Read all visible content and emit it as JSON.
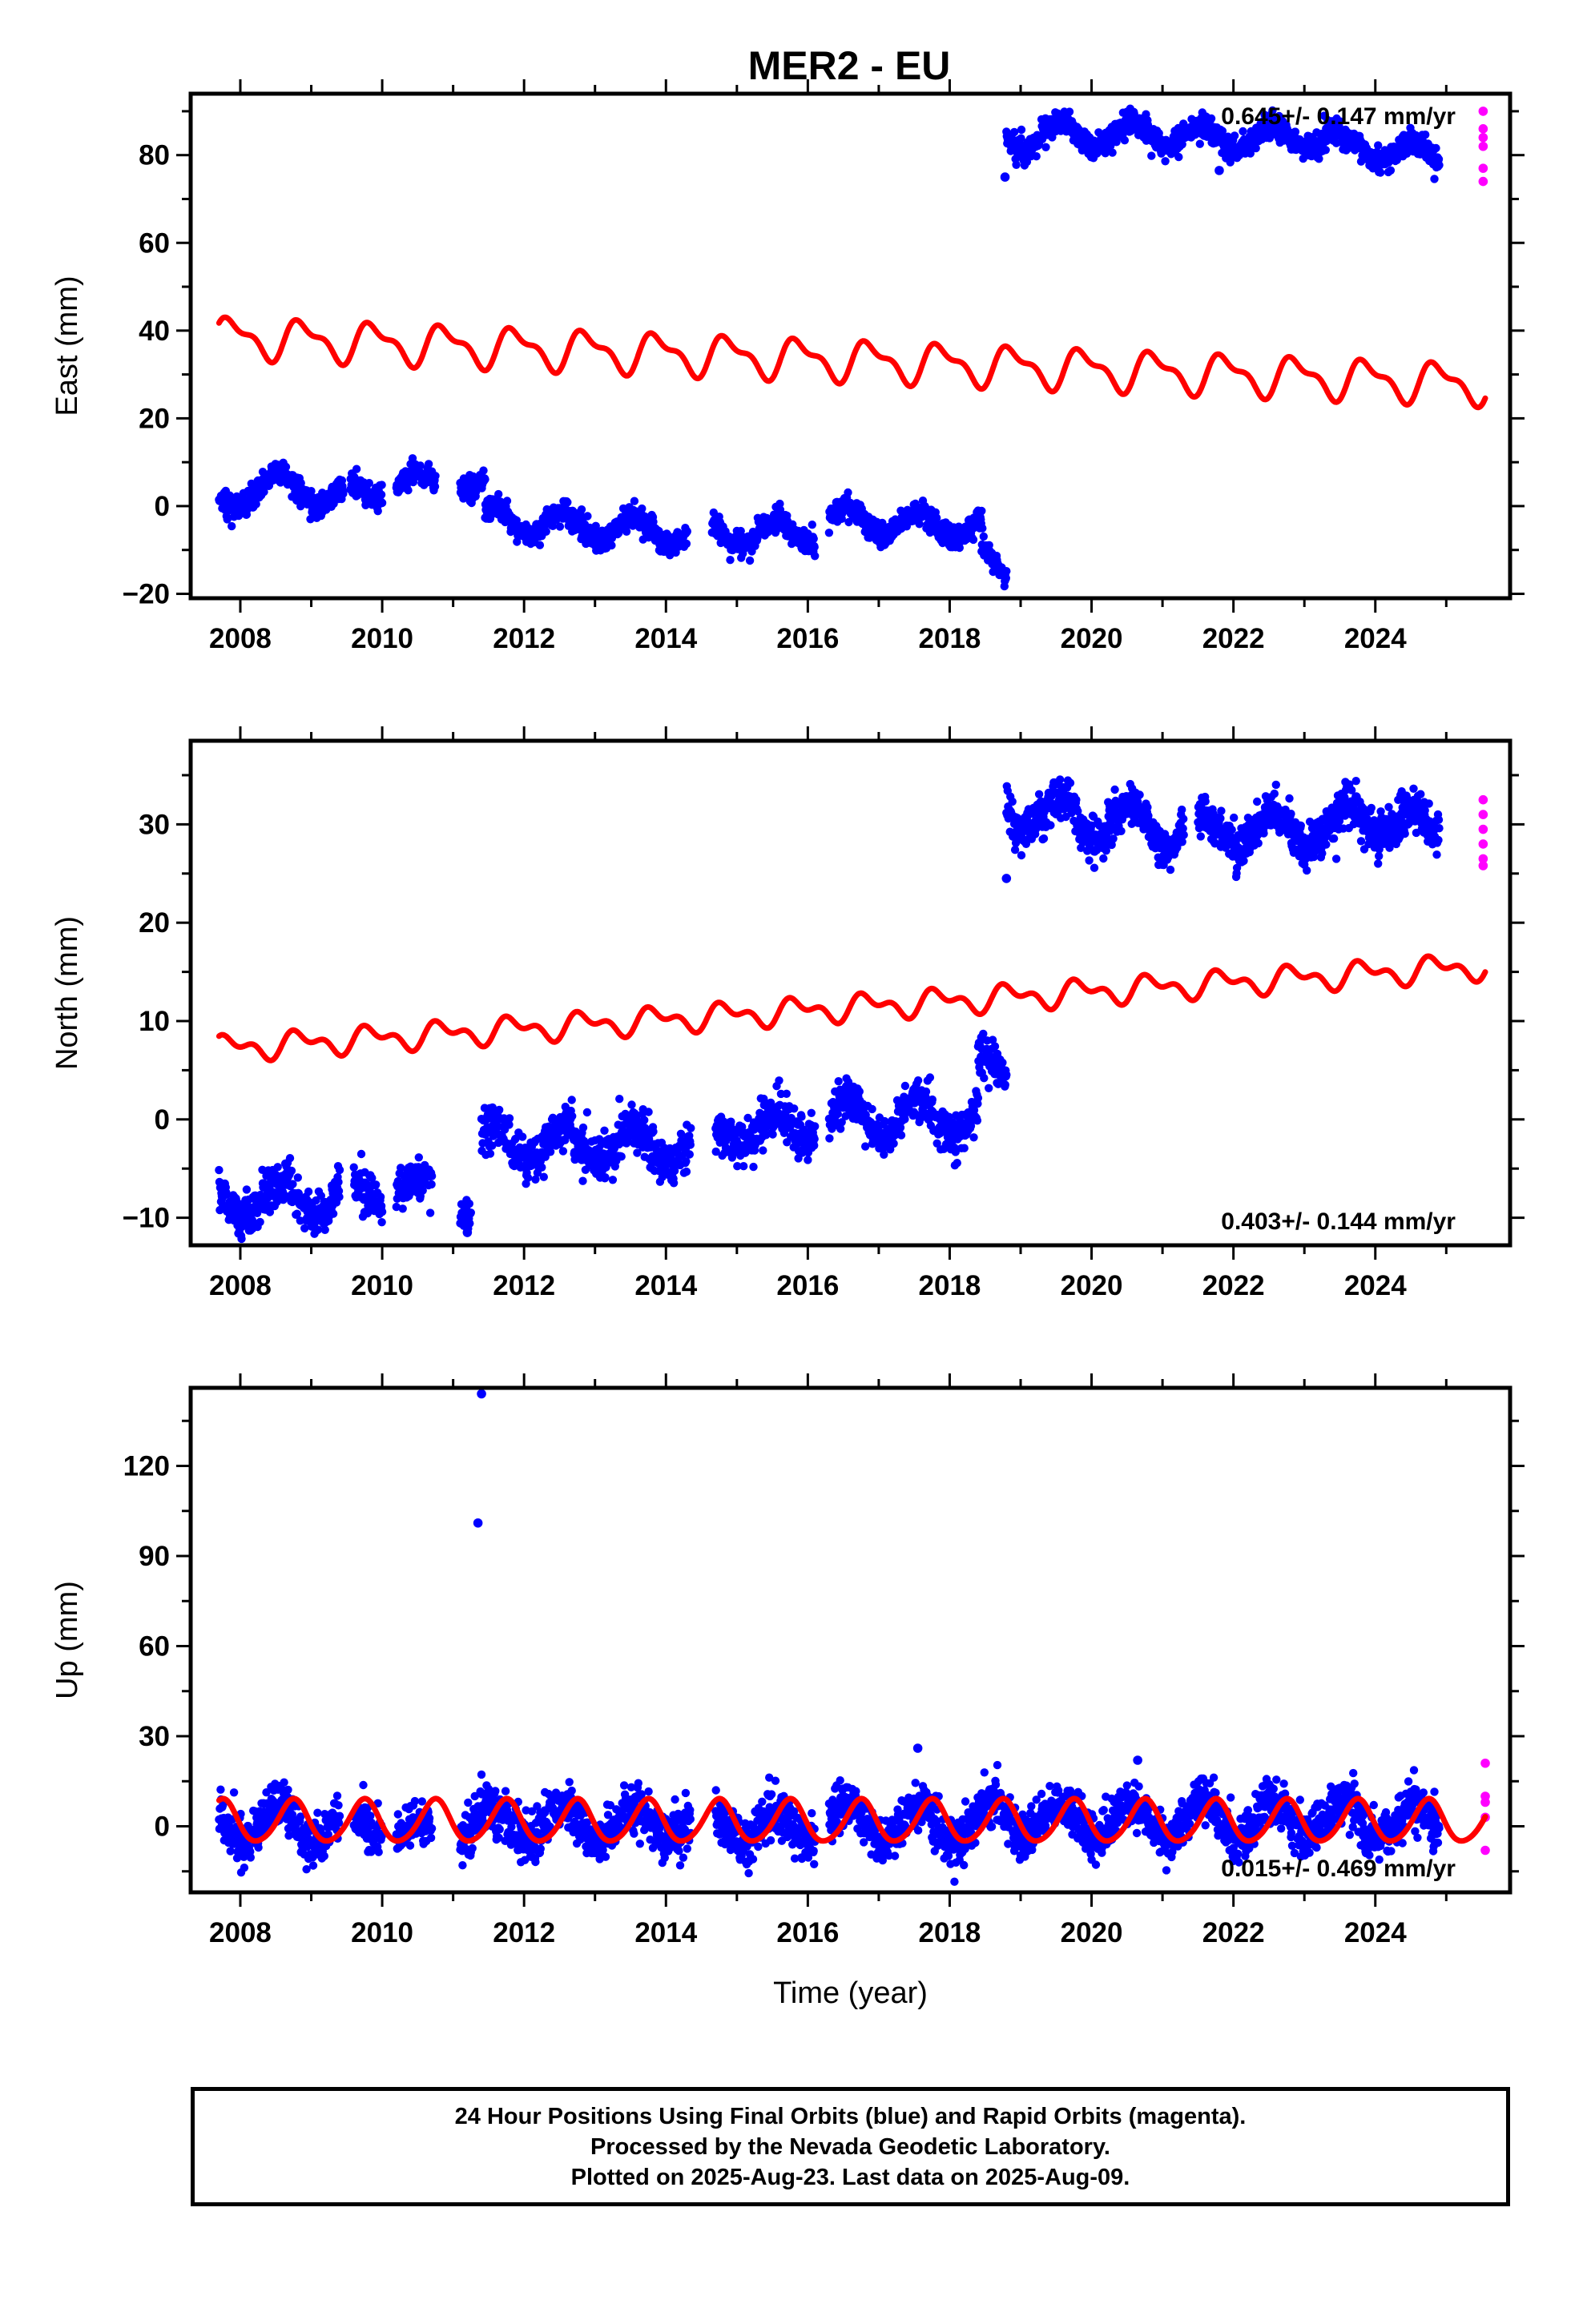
{
  "title": "MER2 - EU",
  "chart_data": [
    {
      "type": "scatter",
      "panel": "east",
      "ylabel": "East (mm)",
      "xlabel": "",
      "xlim": [
        2007.3,
        2025.9
      ],
      "ylim": [
        -21,
        94
      ],
      "x_ticks": [
        2008,
        2010,
        2012,
        2014,
        2016,
        2018,
        2020,
        2022,
        2024
      ],
      "y_ticks": [
        -20,
        0,
        20,
        40,
        60,
        80
      ],
      "rate_annotation": "0.645+/- 0.147 mm/yr",
      "rate_position": "top-right",
      "series": [
        {
          "name": "Final Orbits",
          "color": "#0000ff",
          "segments": [
            {
              "x0": 2007.7,
              "x1": 2008.45,
              "level0": 0,
              "level1": 5,
              "amplitude": 2.5,
              "scatter": 1.4
            },
            {
              "x0": 2008.45,
              "x1": 2009.45,
              "level0": 5,
              "level1": 2,
              "amplitude": 3,
              "scatter": 1.4
            },
            {
              "x0": 2009.55,
              "x1": 2010.0,
              "level0": 3,
              "level1": 3,
              "amplitude": 1.5,
              "scatter": 1.4
            },
            {
              "x0": 2010.2,
              "x1": 2010.75,
              "level0": 6,
              "level1": 5,
              "amplitude": 2,
              "scatter": 1.4
            },
            {
              "x0": 2011.1,
              "x1": 2011.45,
              "level0": 5,
              "level1": 4,
              "amplitude": 1.5,
              "scatter": 1.4
            },
            {
              "x0": 2011.45,
              "x1": 2014.3,
              "level0": -3,
              "level1": -6,
              "amplitude": 3,
              "scatter": 1.4
            },
            {
              "x0": 2014.65,
              "x1": 2016.1,
              "level0": -6,
              "level1": -6,
              "amplitude": 3,
              "scatter": 1.4
            },
            {
              "x0": 2016.3,
              "x1": 2018.45,
              "level0": -3,
              "level1": -5,
              "amplitude": 3,
              "scatter": 1.4
            },
            {
              "x0": 2018.45,
              "x1": 2018.8,
              "level0": -10,
              "level1": -17,
              "amplitude": 1,
              "scatter": 1.2
            },
            {
              "x0": 2018.8,
              "x1": 2020.6,
              "level0": 84,
              "level1": 85,
              "amplitude": 3,
              "scatter": 1.4
            },
            {
              "x0": 2020.6,
              "x1": 2022.0,
              "level0": 85,
              "level1": 84,
              "amplitude": 2.5,
              "scatter": 1.4
            },
            {
              "x0": 2022.0,
              "x1": 2023.5,
              "level0": 84,
              "level1": 84,
              "amplitude": 2.5,
              "scatter": 1.4
            },
            {
              "x0": 2023.5,
              "x1": 2024.9,
              "level0": 82,
              "level1": 80,
              "amplitude": 2.5,
              "scatter": 1.4
            }
          ],
          "outliers": [
            [
              2018.78,
              75
            ],
            [
              2021.8,
              76.5
            ]
          ]
        },
        {
          "name": "Rapid Orbits",
          "color": "#ff00ff",
          "points": [
            [
              2025.52,
              90
            ],
            [
              2025.52,
              86
            ],
            [
              2025.52,
              84
            ],
            [
              2025.52,
              82
            ],
            [
              2025.52,
              77
            ],
            [
              2025.52,
              74
            ]
          ]
        },
        {
          "name": "Model",
          "color": "#ff0000",
          "kind": "line",
          "x0": 2007.7,
          "x1": 2025.55,
          "offset_at_2007_7": 38.5,
          "slope_per_year": -0.6,
          "annual_amplitude": 4.0,
          "annual_phase": 0.4,
          "semiannual_amplitude": 1.8,
          "semiannual_phase": 1.2
        }
      ]
    },
    {
      "type": "scatter",
      "panel": "north",
      "ylabel": "North (mm)",
      "xlabel": "",
      "xlim": [
        2007.3,
        2025.9
      ],
      "ylim": [
        -12.8,
        38.5
      ],
      "x_ticks": [
        2008,
        2010,
        2012,
        2014,
        2016,
        2018,
        2020,
        2022,
        2024
      ],
      "y_ticks": [
        -10,
        0,
        10,
        20,
        30
      ],
      "rate_annotation": "0.403+/- 0.144 mm/yr",
      "rate_position": "bottom-right",
      "series": [
        {
          "name": "Final Orbits",
          "color": "#0000ff",
          "segments": [
            {
              "x0": 2007.7,
              "x1": 2009.4,
              "level0": -8,
              "level1": -8,
              "amplitude": 1.8,
              "scatter": 1.1
            },
            {
              "x0": 2009.6,
              "x1": 2010.0,
              "level0": -7.5,
              "level1": -7.5,
              "amplitude": 1.2,
              "scatter": 1.0
            },
            {
              "x0": 2010.2,
              "x1": 2010.7,
              "level0": -7,
              "level1": -7,
              "amplitude": 1.2,
              "scatter": 1.0
            },
            {
              "x0": 2011.1,
              "x1": 2011.25,
              "level0": -9.5,
              "level1": -10,
              "amplitude": 0.5,
              "scatter": 0.8
            },
            {
              "x0": 2011.4,
              "x1": 2014.35,
              "level0": -2.5,
              "level1": -2.5,
              "amplitude": 1.8,
              "scatter": 1.1
            },
            {
              "x0": 2014.7,
              "x1": 2016.1,
              "level0": -1.5,
              "level1": -0.5,
              "amplitude": 1.5,
              "scatter": 1.1
            },
            {
              "x0": 2016.3,
              "x1": 2018.4,
              "level0": 0,
              "level1": 0,
              "amplitude": 2,
              "scatter": 1.1
            },
            {
              "x0": 2018.4,
              "x1": 2018.8,
              "level0": 6,
              "level1": 4,
              "amplitude": 1,
              "scatter": 1.0
            },
            {
              "x0": 2018.8,
              "x1": 2021.3,
              "level0": 31.5,
              "level1": 29.5,
              "amplitude": 2,
              "scatter": 1.1
            },
            {
              "x0": 2021.5,
              "x1": 2023.5,
              "level0": 29.5,
              "level1": 29.5,
              "amplitude": 1.5,
              "scatter": 1.1
            },
            {
              "x0": 2023.5,
              "x1": 2024.9,
              "level0": 31,
              "level1": 29.5,
              "amplitude": 1.5,
              "scatter": 1.1
            }
          ],
          "outliers": [
            [
              2018.8,
              24.5
            ],
            [
              2011.2,
              -11.5
            ]
          ]
        },
        {
          "name": "Rapid Orbits",
          "color": "#ff00ff",
          "points": [
            [
              2025.52,
              32.5
            ],
            [
              2025.52,
              31
            ],
            [
              2025.52,
              29.5
            ],
            [
              2025.52,
              28
            ],
            [
              2025.52,
              26.5
            ],
            [
              2025.52,
              25.8
            ]
          ]
        },
        {
          "name": "Model",
          "color": "#ff0000",
          "kind": "line",
          "x0": 2007.7,
          "x1": 2025.55,
          "offset_at_2007_7": 7.2,
          "slope_per_year": 0.47,
          "annual_amplitude": 1.0,
          "annual_phase": 0.6,
          "semiannual_amplitude": 0.7,
          "semiannual_phase": 1.5
        }
      ]
    },
    {
      "type": "scatter",
      "panel": "up",
      "ylabel": "Up (mm)",
      "xlabel": "Time (year)",
      "xlim": [
        2007.3,
        2025.9
      ],
      "ylim": [
        -22,
        146
      ],
      "x_ticks": [
        2008,
        2010,
        2012,
        2014,
        2016,
        2018,
        2020,
        2022,
        2024
      ],
      "y_ticks": [
        0,
        30,
        60,
        90,
        120
      ],
      "rate_annotation": "0.015+/- 0.469 mm/yr",
      "rate_position": "bottom-right",
      "series": [
        {
          "name": "Final Orbits",
          "color": "#0000ff",
          "segments": [
            {
              "x0": 2007.7,
              "x1": 2009.4,
              "level0": 1,
              "level1": 1,
              "amplitude": 6,
              "scatter": 4
            },
            {
              "x0": 2009.6,
              "x1": 2010.0,
              "level0": 0,
              "level1": 0,
              "amplitude": 4,
              "scatter": 3.5
            },
            {
              "x0": 2010.2,
              "x1": 2010.7,
              "level0": -2,
              "level1": -2,
              "amplitude": 4,
              "scatter": 3.5
            },
            {
              "x0": 2011.1,
              "x1": 2014.35,
              "level0": 1,
              "level1": 1,
              "amplitude": 6,
              "scatter": 4
            },
            {
              "x0": 2014.7,
              "x1": 2016.1,
              "level0": 0,
              "level1": 0,
              "amplitude": 6,
              "scatter": 4
            },
            {
              "x0": 2016.3,
              "x1": 2018.45,
              "level0": 1,
              "level1": 1,
              "amplitude": 6,
              "scatter": 4
            },
            {
              "x0": 2018.45,
              "x1": 2024.9,
              "level0": 2,
              "level1": 2,
              "amplitude": 6,
              "scatter": 4
            }
          ],
          "outliers": [
            [
              2011.4,
              144
            ],
            [
              2011.35,
              101
            ],
            [
              2017.55,
              26
            ],
            [
              2020.65,
              22
            ]
          ]
        },
        {
          "name": "Rapid Orbits",
          "color": "#ff00ff",
          "points": [
            [
              2025.55,
              21
            ],
            [
              2025.55,
              10
            ],
            [
              2025.55,
              8
            ],
            [
              2025.55,
              3
            ],
            [
              2025.55,
              -8
            ]
          ]
        },
        {
          "name": "Model",
          "color": "#ff0000",
          "kind": "line",
          "x0": 2007.7,
          "x1": 2025.55,
          "offset_at_2007_7": 1.5,
          "slope_per_year": 0.0,
          "annual_amplitude": 7.0,
          "annual_phase": 1.3,
          "semiannual_amplitude": 0.8,
          "semiannual_phase": 0.5
        }
      ]
    }
  ],
  "caption": {
    "line1": "24 Hour Positions Using Final Orbits (blue) and Rapid Orbits (magenta).",
    "line2": "Processed by the Nevada Geodetic Laboratory.",
    "line3": "Plotted on 2025-Aug-23. Last data on 2025-Aug-09."
  }
}
